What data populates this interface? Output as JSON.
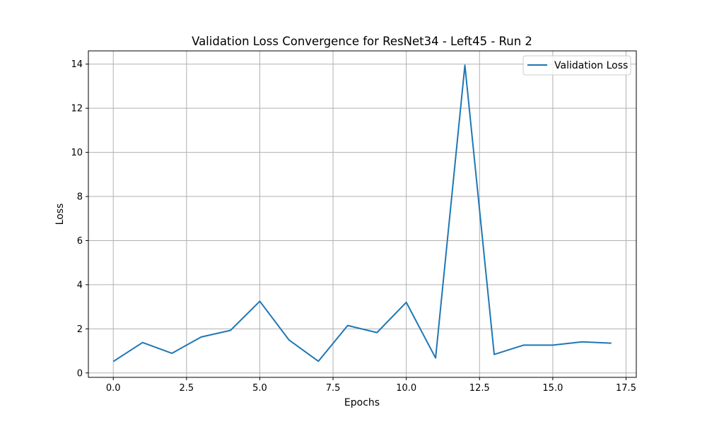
{
  "chart_data": {
    "type": "line",
    "title": "Validation Loss Convergence for ResNet34 - Left45 - Run 2",
    "xlabel": "Epochs",
    "ylabel": "Loss",
    "xlim": [
      -0.85,
      17.85
    ],
    "ylim": [
      -0.2,
      14.6
    ],
    "x_ticks": [
      0.0,
      2.5,
      5.0,
      7.5,
      10.0,
      12.5,
      15.0,
      17.5
    ],
    "x_tick_labels": [
      "0.0",
      "2.5",
      "5.0",
      "7.5",
      "10.0",
      "12.5",
      "15.0",
      "17.5"
    ],
    "y_ticks": [
      0,
      2,
      4,
      6,
      8,
      10,
      12,
      14
    ],
    "y_tick_labels": [
      "0",
      "2",
      "4",
      "6",
      "8",
      "10",
      "12",
      "14"
    ],
    "grid": true,
    "legend_position": "top-right",
    "series": [
      {
        "name": "Validation Loss",
        "color": "#1f77b4",
        "x": [
          0,
          1,
          2,
          3,
          4,
          5,
          6,
          7,
          8,
          9,
          10,
          11,
          12,
          13,
          14,
          15,
          16,
          17
        ],
        "y": [
          0.52,
          1.38,
          0.89,
          1.63,
          1.93,
          3.25,
          1.49,
          0.53,
          2.15,
          1.83,
          3.2,
          0.68,
          13.95,
          0.84,
          1.26,
          1.26,
          1.41,
          1.35
        ]
      }
    ]
  }
}
